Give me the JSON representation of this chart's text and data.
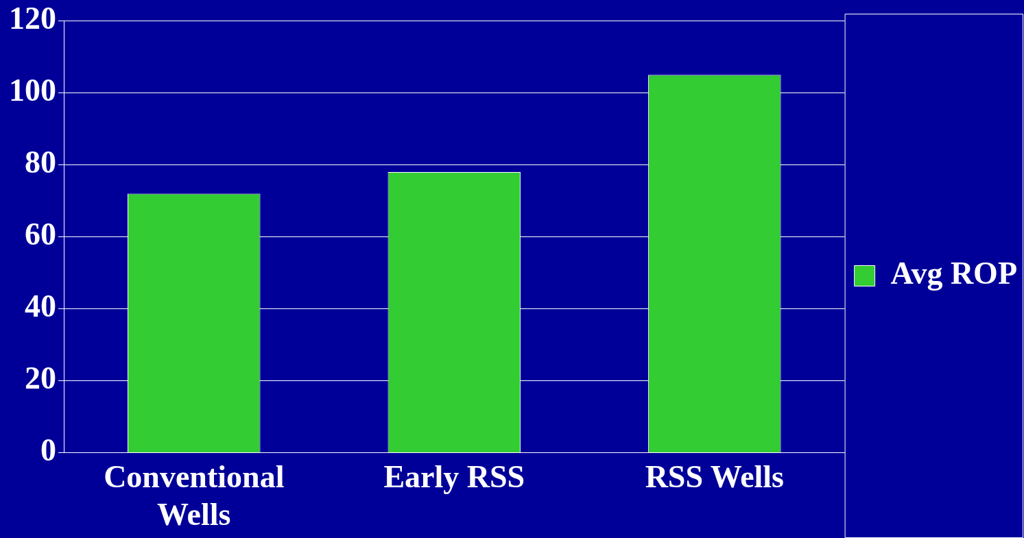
{
  "chart_data": {
    "type": "bar",
    "categories": [
      "Conventional Wells",
      "Early RSS",
      "RSS Wells"
    ],
    "series": [
      {
        "name": "Avg ROP",
        "color": "#33cc33",
        "values": [
          72,
          78,
          105
        ]
      }
    ],
    "ylim": [
      0,
      120
    ],
    "yticks": [
      0,
      20,
      40,
      60,
      80,
      100,
      120
    ],
    "grid": "y",
    "legend": "right"
  }
}
